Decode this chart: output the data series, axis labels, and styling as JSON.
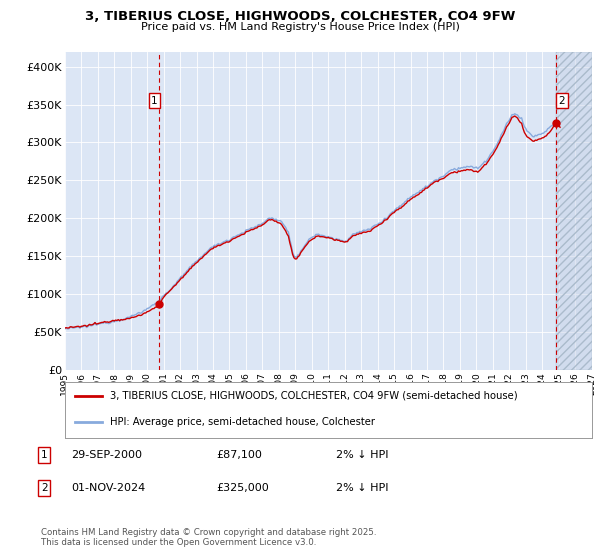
{
  "title": "3, TIBERIUS CLOSE, HIGHWOODS, COLCHESTER, CO4 9FW",
  "subtitle": "Price paid vs. HM Land Registry's House Price Index (HPI)",
  "bg_color": "#dce6f5",
  "hpi_color": "#88aadd",
  "price_color": "#cc0000",
  "vline_color": "#cc0000",
  "legend_price_label": "3, TIBERIUS CLOSE, HIGHWOODS, COLCHESTER, CO4 9FW (semi-detached house)",
  "legend_hpi_label": "HPI: Average price, semi-detached house, Colchester",
  "marker1_x": 2000.75,
  "marker1_y": 87100,
  "marker2_x": 2024.83,
  "marker2_y": 325000,
  "ann1_box": "1",
  "ann1_date": "29-SEP-2000",
  "ann1_price": "£87,100",
  "ann1_note": "2% ↓ HPI",
  "ann2_box": "2",
  "ann2_date": "01-NOV-2024",
  "ann2_price": "£325,000",
  "ann2_note": "2% ↓ HPI",
  "footer": "Contains HM Land Registry data © Crown copyright and database right 2025.\nThis data is licensed under the Open Government Licence v3.0.",
  "xlim": [
    1995.0,
    2027.0
  ],
  "ylim": [
    0,
    420000
  ],
  "yticks": [
    0,
    50000,
    100000,
    150000,
    200000,
    250000,
    300000,
    350000,
    400000
  ],
  "ytick_labels": [
    "£0",
    "£50K",
    "£100K",
    "£150K",
    "£200K",
    "£250K",
    "£300K",
    "£350K",
    "£400K"
  ],
  "xtick_years": [
    1995,
    1996,
    1997,
    1998,
    1999,
    2000,
    2001,
    2002,
    2003,
    2004,
    2005,
    2006,
    2007,
    2008,
    2009,
    2010,
    2011,
    2012,
    2013,
    2014,
    2015,
    2016,
    2017,
    2018,
    2019,
    2020,
    2021,
    2022,
    2023,
    2024,
    2025,
    2026,
    2027
  ],
  "hatch_start": 2024.83,
  "hatch_color": "#c8d4e8"
}
